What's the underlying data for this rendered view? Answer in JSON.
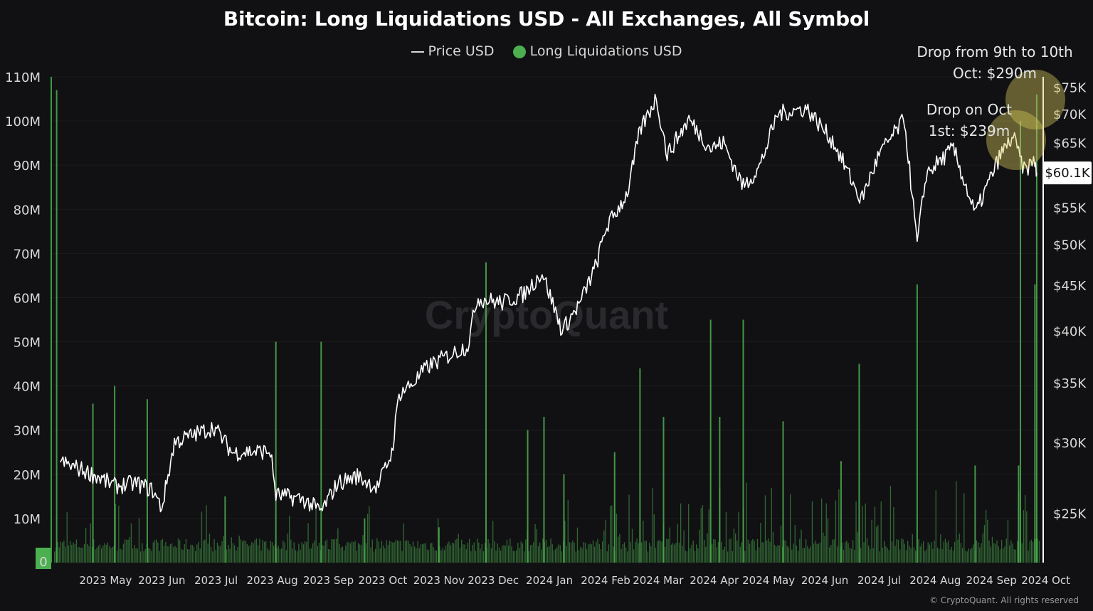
{
  "chart_data": {
    "type": "bar+line",
    "title": "Bitcoin: Long Liquidations USD - All Exchanges, All Symbol",
    "legend": [
      "Price USD",
      "Long Liquidations USD"
    ],
    "legend_placement": "top-center",
    "x_tick_labels": [
      "2023 May",
      "2023 Jun",
      "2023 Jul",
      "2023 Aug",
      "2023 Sep",
      "2023 Oct",
      "2023 Nov",
      "2023 Dec",
      "2024 Jan",
      "2024 Feb",
      "2024 Mar",
      "2024 Apr",
      "2024 May",
      "2024 Jun",
      "2024 Jul",
      "2024 Aug",
      "2024 Sep",
      "2024 Oct"
    ],
    "y_left": {
      "label": "Long Liquidations USD",
      "ylim": [
        0,
        110000000
      ],
      "tick_labels": [
        "0",
        "10M",
        "20M",
        "30M",
        "40M",
        "50M",
        "60M",
        "70M",
        "80M",
        "90M",
        "100M",
        "110M"
      ]
    },
    "y_right": {
      "label": "Price USD",
      "scale": "log",
      "ylim": [
        22000,
        77000
      ],
      "tick_values": [
        25000,
        30000,
        35000,
        40000,
        45000,
        50000,
        55000,
        60000,
        65000,
        70000,
        75000
      ],
      "tick_labels": [
        "$25K",
        "$30K",
        "$35K",
        "$40K",
        "$45K",
        "$50K",
        "$55K",
        "$60K",
        "$65K",
        "$70K",
        "$75K"
      ]
    },
    "current_price_label": "$60.1K",
    "price_series": {
      "name": "Price USD",
      "points": [
        [
          "2023-04-20",
          28500
        ],
        [
          "2023-05-01",
          28000
        ],
        [
          "2023-05-10",
          27500
        ],
        [
          "2023-05-20",
          26800
        ],
        [
          "2023-06-01",
          27000
        ],
        [
          "2023-06-10",
          26500
        ],
        [
          "2023-06-15",
          25300
        ],
        [
          "2023-06-22",
          30000
        ],
        [
          "2023-07-01",
          30500
        ],
        [
          "2023-07-14",
          31200
        ],
        [
          "2023-07-24",
          29200
        ],
        [
          "2023-08-01",
          29300
        ],
        [
          "2023-08-14",
          29300
        ],
        [
          "2023-08-17",
          26200
        ],
        [
          "2023-09-01",
          25900
        ],
        [
          "2023-09-11",
          25100
        ],
        [
          "2023-09-20",
          27000
        ],
        [
          "2023-10-01",
          27500
        ],
        [
          "2023-10-12",
          26700
        ],
        [
          "2023-10-20",
          29200
        ],
        [
          "2023-10-24",
          34000
        ],
        [
          "2023-11-01",
          35000
        ],
        [
          "2023-11-09",
          36500
        ],
        [
          "2023-11-20",
          37500
        ],
        [
          "2023-12-01",
          38500
        ],
        [
          "2023-12-06",
          43500
        ],
        [
          "2023-12-20",
          43000
        ],
        [
          "2024-01-01",
          44000
        ],
        [
          "2024-01-11",
          46500
        ],
        [
          "2024-01-22",
          40000
        ],
        [
          "2024-02-01",
          43000
        ],
        [
          "2024-02-10",
          47500
        ],
        [
          "2024-02-15",
          52000
        ],
        [
          "2024-02-27",
          57000
        ],
        [
          "2024-03-05",
          67000
        ],
        [
          "2024-03-14",
          73000
        ],
        [
          "2024-03-20",
          63000
        ],
        [
          "2024-04-01",
          69000
        ],
        [
          "2024-04-13",
          64000
        ],
        [
          "2024-04-20",
          65000
        ],
        [
          "2024-05-01",
          58000
        ],
        [
          "2024-05-10",
          61000
        ],
        [
          "2024-05-20",
          70000
        ],
        [
          "2024-06-05",
          71000
        ],
        [
          "2024-06-20",
          65000
        ],
        [
          "2024-07-05",
          56000
        ],
        [
          "2024-07-15",
          63000
        ],
        [
          "2024-07-29",
          69000
        ],
        [
          "2024-08-05",
          50000
        ],
        [
          "2024-08-10",
          60000
        ],
        [
          "2024-08-25",
          64000
        ],
        [
          "2024-09-06",
          54000
        ],
        [
          "2024-09-20",
          63000
        ],
        [
          "2024-09-27",
          66000
        ],
        [
          "2024-10-03",
          60500
        ],
        [
          "2024-10-09",
          62000
        ],
        [
          "2024-10-10",
          60100
        ]
      ]
    },
    "liquidation_spikes": {
      "name": "Long Liquidations USD",
      "points": [
        [
          "2023-04-18",
          107000000
        ],
        [
          "2023-05-08",
          36000000
        ],
        [
          "2023-05-20",
          40000000
        ],
        [
          "2023-06-07",
          37000000
        ],
        [
          "2023-07-20",
          15000000
        ],
        [
          "2023-08-17",
          50000000
        ],
        [
          "2023-09-11",
          50000000
        ],
        [
          "2023-10-05",
          10000000
        ],
        [
          "2023-11-15",
          8000000
        ],
        [
          "2023-12-11",
          68000000
        ],
        [
          "2024-01-03",
          30000000
        ],
        [
          "2024-01-12",
          33000000
        ],
        [
          "2024-01-23",
          20000000
        ],
        [
          "2024-02-20",
          25000000
        ],
        [
          "2024-03-05",
          44000000
        ],
        [
          "2024-03-18",
          33000000
        ],
        [
          "2024-04-13",
          55000000
        ],
        [
          "2024-04-18",
          33000000
        ],
        [
          "2024-05-01",
          55000000
        ],
        [
          "2024-05-23",
          32000000
        ],
        [
          "2024-06-24",
          23000000
        ],
        [
          "2024-07-04",
          45000000
        ],
        [
          "2024-08-05",
          63000000
        ],
        [
          "2024-09-06",
          22000000
        ],
        [
          "2024-09-30",
          22000000
        ],
        [
          "2024-10-01",
          100000000
        ],
        [
          "2024-10-09",
          63000000
        ],
        [
          "2024-10-10",
          106000000
        ]
      ]
    },
    "annotations": [
      {
        "text": "Drop from 9th to 10th Oct: $290m"
      },
      {
        "text": "Drop on Oct 1st: $239m"
      }
    ],
    "watermark": "CryptoQuant",
    "copyright": "© CryptoQuant. All rights reserved",
    "colors": {
      "background": "#111113",
      "bars": "#4caf50",
      "price_line": "#ffffff",
      "highlight": "#d6c85a",
      "grid": "#1c1c1f"
    }
  }
}
